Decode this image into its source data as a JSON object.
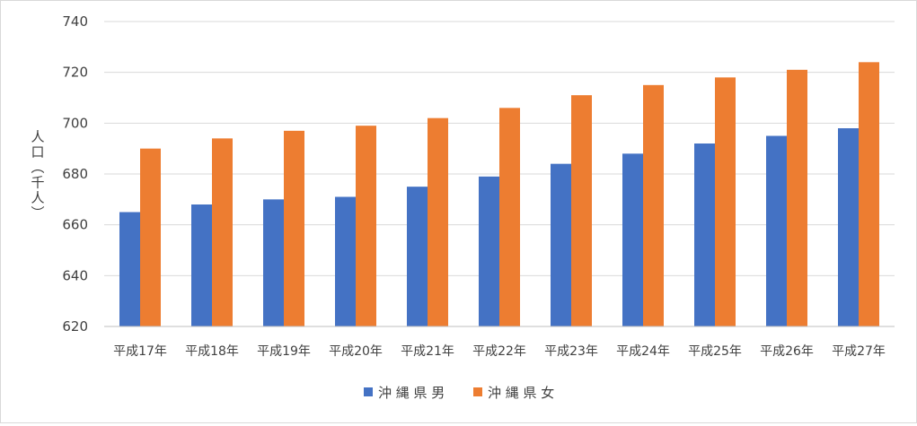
{
  "chart_data": {
    "type": "bar",
    "title": "",
    "xlabel": "",
    "ylabel": "人口（千人）",
    "ylim": [
      620,
      740
    ],
    "yticks": [
      "620",
      "640",
      "660",
      "680",
      "700",
      "720",
      "740"
    ],
    "grid": true,
    "legend_position": "bottom",
    "categories": [
      "平成17年",
      "平成18年",
      "平成19年",
      "平成20年",
      "平成21年",
      "平成22年",
      "平成23年",
      "平成24年",
      "平成25年",
      "平成26年",
      "平成27年"
    ],
    "series": [
      {
        "name": "沖 縄 県 男",
        "color": "#4472c4",
        "values": [
          665,
          668,
          670,
          671,
          675,
          679,
          684,
          688,
          692,
          695,
          698
        ]
      },
      {
        "name": "沖 縄 県 女",
        "color": "#ed7d31",
        "values": [
          690,
          694,
          697,
          699,
          702,
          706,
          711,
          715,
          718,
          721,
          724
        ]
      }
    ]
  }
}
